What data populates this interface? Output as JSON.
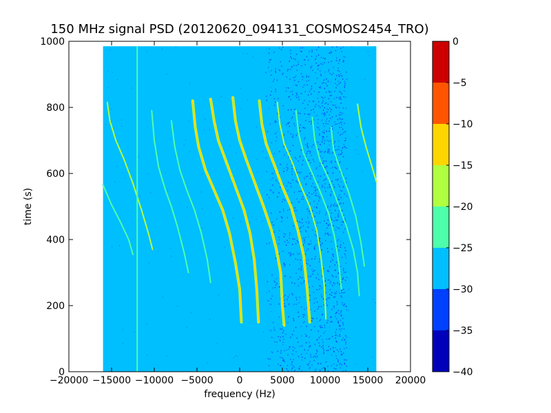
{
  "chart_data": {
    "type": "heatmap",
    "title": "150 MHz signal PSD (20120620_094131_COSMOS2454_TRO)",
    "xlabel": "frequency (Hz)",
    "ylabel": "time (s)",
    "xlim": [
      -20000,
      20000
    ],
    "ylim": [
      0,
      1000
    ],
    "x_ticks": [
      -20000,
      -15000,
      -10000,
      -5000,
      0,
      5000,
      10000,
      15000,
      20000
    ],
    "x_tick_labels": [
      "−20000",
      "−15000",
      "−10000",
      "−5000",
      "0",
      "5000",
      "10000",
      "15000",
      "20000"
    ],
    "y_ticks": [
      0,
      200,
      400,
      600,
      800,
      1000
    ],
    "y_tick_labels": [
      "0",
      "200",
      "400",
      "600",
      "800",
      "1000"
    ],
    "data_extent": {
      "x": [
        -16000,
        16000
      ],
      "y": [
        0,
        985
      ]
    },
    "background_level": -27.5,
    "colorbar": {
      "range": [
        -40,
        0
      ],
      "ticks": [
        0,
        -5,
        -10,
        -15,
        -20,
        -25,
        -30,
        -35,
        -40
      ],
      "tick_labels": [
        "0",
        "−5",
        "−10",
        "−15",
        "−20",
        "−25",
        "−30",
        "−35",
        "−40"
      ],
      "bands": [
        {
          "from": -40,
          "to": -35,
          "color": "#0000bb"
        },
        {
          "from": -35,
          "to": -30,
          "color": "#0040ff"
        },
        {
          "from": -30,
          "to": -25,
          "color": "#00bfff"
        },
        {
          "from": -25,
          "to": -20,
          "color": "#4dffaa"
        },
        {
          "from": -20,
          "to": -15,
          "color": "#b0ff40"
        },
        {
          "from": -15,
          "to": -10,
          "color": "#ffd500"
        },
        {
          "from": -10,
          "to": -5,
          "color": "#ff5500"
        },
        {
          "from": -5,
          "to": 0,
          "color": "#cc0000"
        }
      ]
    },
    "vertical_line": {
      "x": -12000,
      "y": [
        0,
        985
      ],
      "level": -22
    },
    "signal_traces": [
      {
        "points": [
          [
            -16000,
            565
          ],
          [
            -15000,
            505
          ],
          [
            -14000,
            455
          ],
          [
            -13000,
            400
          ],
          [
            -12500,
            355
          ]
        ],
        "level": -22
      },
      {
        "points": [
          [
            -15500,
            815
          ],
          [
            -15200,
            760
          ],
          [
            -14500,
            700
          ],
          [
            -13500,
            640
          ],
          [
            -12500,
            570
          ],
          [
            -11500,
            490
          ],
          [
            -10700,
            420
          ],
          [
            -10200,
            370
          ]
        ],
        "level": -18
      },
      {
        "points": [
          [
            -10300,
            790
          ],
          [
            -10000,
            700
          ],
          [
            -9500,
            620
          ],
          [
            -8700,
            550
          ],
          [
            -8000,
            500
          ],
          [
            -7300,
            440
          ],
          [
            -6500,
            360
          ],
          [
            -6000,
            300
          ]
        ],
        "level": -22
      },
      {
        "points": [
          [
            -8000,
            760
          ],
          [
            -7600,
            680
          ],
          [
            -7000,
            610
          ],
          [
            -6200,
            550
          ],
          [
            -5300,
            490
          ],
          [
            -4500,
            420
          ],
          [
            -3800,
            340
          ],
          [
            -3400,
            270
          ]
        ],
        "level": -22
      },
      {
        "points": [
          [
            -5500,
            820
          ],
          [
            -5200,
            740
          ],
          [
            -4800,
            680
          ],
          [
            -4000,
            610
          ],
          [
            -3000,
            550
          ],
          [
            -2000,
            490
          ],
          [
            -1200,
            420
          ],
          [
            -500,
            330
          ],
          [
            0,
            250
          ],
          [
            200,
            150
          ]
        ],
        "level": -13
      },
      {
        "points": [
          [
            -3400,
            825
          ],
          [
            -3000,
            760
          ],
          [
            -2500,
            700
          ],
          [
            -1500,
            630
          ],
          [
            -500,
            560
          ],
          [
            500,
            490
          ],
          [
            1200,
            420
          ],
          [
            1700,
            340
          ],
          [
            2000,
            250
          ],
          [
            2200,
            150
          ]
        ],
        "level": -12
      },
      {
        "points": [
          [
            -800,
            830
          ],
          [
            -500,
            760
          ],
          [
            0,
            700
          ],
          [
            800,
            640
          ],
          [
            1800,
            570
          ],
          [
            2800,
            500
          ],
          [
            3700,
            430
          ],
          [
            4300,
            370
          ],
          [
            4800,
            300
          ],
          [
            5000,
            200
          ],
          [
            5200,
            140
          ]
        ],
        "level": -10
      },
      {
        "points": [
          [
            2300,
            820
          ],
          [
            2600,
            750
          ],
          [
            3100,
            690
          ],
          [
            4000,
            630
          ],
          [
            5000,
            560
          ],
          [
            6000,
            500
          ],
          [
            6800,
            430
          ],
          [
            7500,
            350
          ],
          [
            7900,
            250
          ],
          [
            8200,
            150
          ]
        ],
        "level": -12
      },
      {
        "points": [
          [
            4400,
            815
          ],
          [
            4700,
            750
          ],
          [
            5200,
            690
          ],
          [
            6200,
            630
          ],
          [
            7200,
            560
          ],
          [
            8200,
            500
          ],
          [
            9000,
            430
          ],
          [
            9500,
            350
          ],
          [
            9900,
            260
          ],
          [
            10100,
            160
          ]
        ],
        "level": -15
      },
      {
        "points": [
          [
            6600,
            790
          ],
          [
            6900,
            720
          ],
          [
            7500,
            660
          ],
          [
            8500,
            600
          ],
          [
            9500,
            540
          ],
          [
            10400,
            480
          ],
          [
            11100,
            410
          ],
          [
            11600,
            330
          ],
          [
            11900,
            250
          ]
        ],
        "level": -22
      },
      {
        "points": [
          [
            8500,
            770
          ],
          [
            8800,
            700
          ],
          [
            9400,
            640
          ],
          [
            10500,
            580
          ],
          [
            11500,
            510
          ],
          [
            12500,
            440
          ],
          [
            13300,
            370
          ],
          [
            13800,
            300
          ],
          [
            14000,
            230
          ]
        ],
        "level": -22
      },
      {
        "points": [
          [
            10700,
            740
          ],
          [
            11000,
            670
          ],
          [
            11800,
            610
          ],
          [
            12800,
            540
          ],
          [
            13600,
            470
          ],
          [
            14200,
            390
          ],
          [
            14600,
            320
          ]
        ],
        "level": -22
      },
      {
        "points": [
          [
            13800,
            810
          ],
          [
            14200,
            740
          ],
          [
            14800,
            680
          ],
          [
            15500,
            620
          ],
          [
            16000,
            575
          ]
        ],
        "level": -18
      }
    ],
    "noise_band": {
      "x": [
        3000,
        12500
      ],
      "level": -33
    }
  }
}
